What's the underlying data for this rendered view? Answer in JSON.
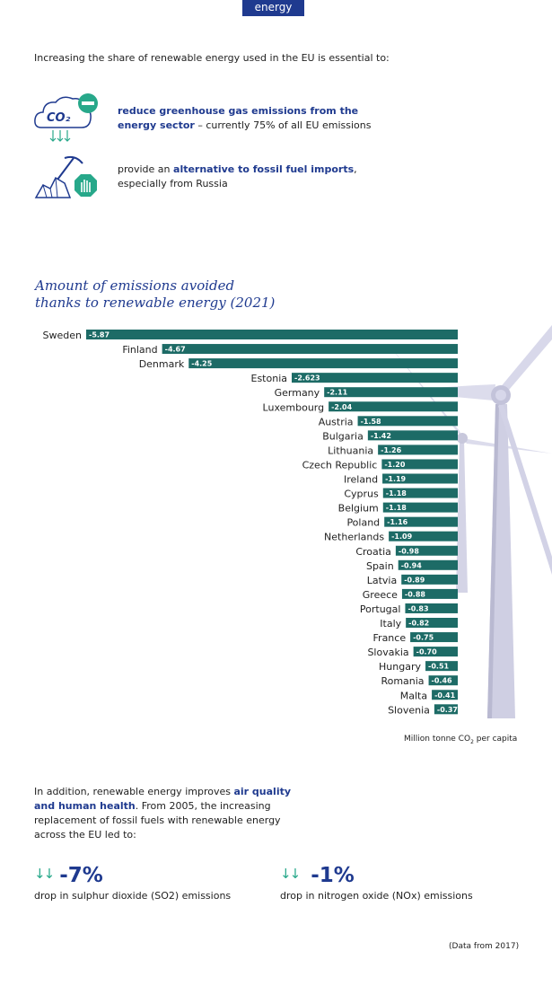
{
  "header": {
    "tab_label": "energy"
  },
  "intro": {
    "text": "Increasing the share of renewable energy used in the EU is essential to:"
  },
  "points": [
    {
      "icon": "co2-reduction-icon",
      "bold": "reduce greenhouse gas emissions from the energy sector",
      "rest": " – currently 75% of all EU emissions",
      "co2": "CO₂"
    },
    {
      "icon": "fossil-fuel-stop-icon",
      "pre": "provide an ",
      "bold": "alternative to fossil fuel imports",
      "rest": ", especially from Russia"
    }
  ],
  "chart": {
    "title_line1": "Amount of emissions avoided",
    "title_line2": "thanks to renewable energy (2021)",
    "unit_main": "Million tonne CO",
    "unit_sub": "2",
    "unit_end": " per capita"
  },
  "chart_data": {
    "type": "bar",
    "orientation": "horizontal",
    "title": "Amount of emissions avoided thanks to renewable energy (2021)",
    "xlabel": "Million tonne CO2 per capita",
    "categories": [
      "Sweden",
      "Finland",
      "Denmark",
      "Estonia",
      "Germany",
      "Luxembourg",
      "Austria",
      "Bulgaria",
      "Lithuania",
      "Czech Republic",
      "Ireland",
      "Cyprus",
      "Belgium",
      "Poland",
      "Netherlands",
      "Croatia",
      "Spain",
      "Latvia",
      "Greece",
      "Portugal",
      "Italy",
      "France",
      "Slovakia",
      "Hungary",
      "Romania",
      "Malta",
      "Slovenia"
    ],
    "labels": [
      "-5.87",
      "-4.67",
      "-4.25",
      "-2.623",
      "-2.11",
      "-2.04",
      "-1.58",
      "-1.42",
      "-1.26",
      "-1.20",
      "-1.19",
      "-1.18",
      "-1.18",
      "-1.16",
      "-1.09",
      "-0.98",
      "-0.94",
      "-0.89",
      "-0.88",
      "-0.83",
      "-0.82",
      "-0.75",
      "-0.70",
      "-0.51",
      "-0.46",
      "-0.41",
      "-0.37"
    ],
    "values": [
      -5.87,
      -4.67,
      -4.25,
      -2.623,
      -2.11,
      -2.04,
      -1.58,
      -1.42,
      -1.26,
      -1.2,
      -1.19,
      -1.18,
      -1.18,
      -1.16,
      -1.09,
      -0.98,
      -0.94,
      -0.89,
      -0.88,
      -0.83,
      -0.82,
      -0.75,
      -0.7,
      -0.51,
      -0.46,
      -0.41,
      -0.37
    ],
    "bar_color": "#1d6b66"
  },
  "additional": {
    "pre": "In addition, renewable energy improves ",
    "bold": "air quality and human health",
    "post": ". From 2005, the increasing replacement of fossil fuels with renewable energy across the EU led to:"
  },
  "stats": [
    {
      "value": "-7%",
      "label": "drop in sulphur dioxide (SO2) emissions"
    },
    {
      "value": "-1%",
      "label": "drop in nitrogen oxide (NOx) emissions"
    }
  ],
  "footnote": "(Data from 2017)",
  "colors": {
    "brand_blue": "#1f3a8f",
    "teal": "#27a88a",
    "bar": "#1d6b66"
  }
}
